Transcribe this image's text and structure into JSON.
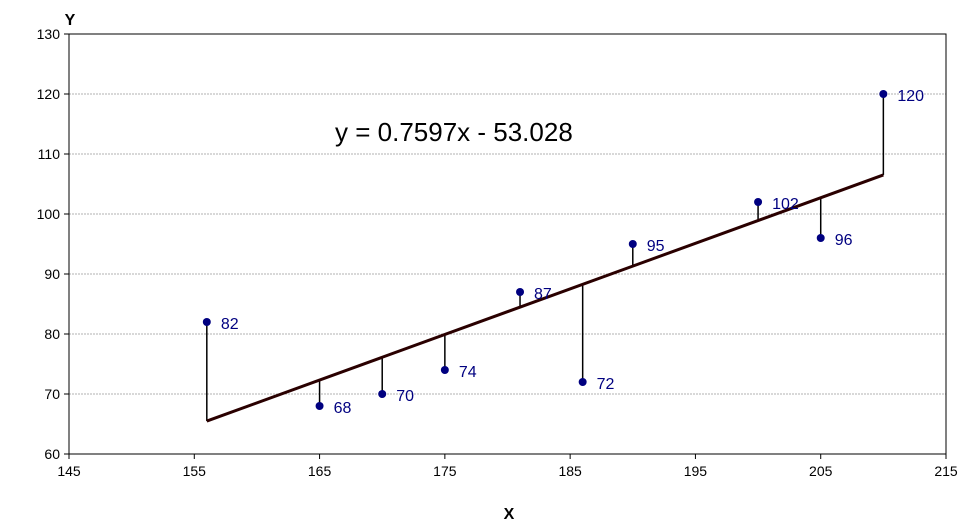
{
  "chart_data": {
    "type": "scatter",
    "title": "",
    "xlabel": "X",
    "ylabel": "Y",
    "xlim": [
      145,
      215
    ],
    "ylim": [
      60,
      130
    ],
    "xticks": [
      145,
      155,
      165,
      175,
      185,
      195,
      205,
      215
    ],
    "yticks": [
      60,
      70,
      80,
      90,
      100,
      110,
      120,
      130
    ],
    "grid": "horizontal",
    "annotation": "y = 0.7597x - 53.028",
    "trendline": {
      "slope": 0.7597,
      "intercept": -53.028,
      "x_range": [
        156,
        210
      ]
    },
    "residual_lines": true,
    "points": [
      {
        "x": 156,
        "y": 82,
        "label": "82"
      },
      {
        "x": 165,
        "y": 68,
        "label": "68"
      },
      {
        "x": 170,
        "y": 70,
        "label": "70"
      },
      {
        "x": 175,
        "y": 74,
        "label": "74"
      },
      {
        "x": 181,
        "y": 87,
        "label": "87"
      },
      {
        "x": 186,
        "y": 72,
        "label": "72"
      },
      {
        "x": 190,
        "y": 95,
        "label": "95"
      },
      {
        "x": 200,
        "y": 102,
        "label": "102"
      },
      {
        "x": 205,
        "y": 96,
        "label": "96"
      },
      {
        "x": 210,
        "y": 120,
        "label": "120"
      }
    ],
    "colors": {
      "point": "#000080",
      "label": "#000080",
      "trendline": "#2a0000",
      "residual": "#000000",
      "grid": "#b0b0b0",
      "axis": "#000000"
    }
  }
}
